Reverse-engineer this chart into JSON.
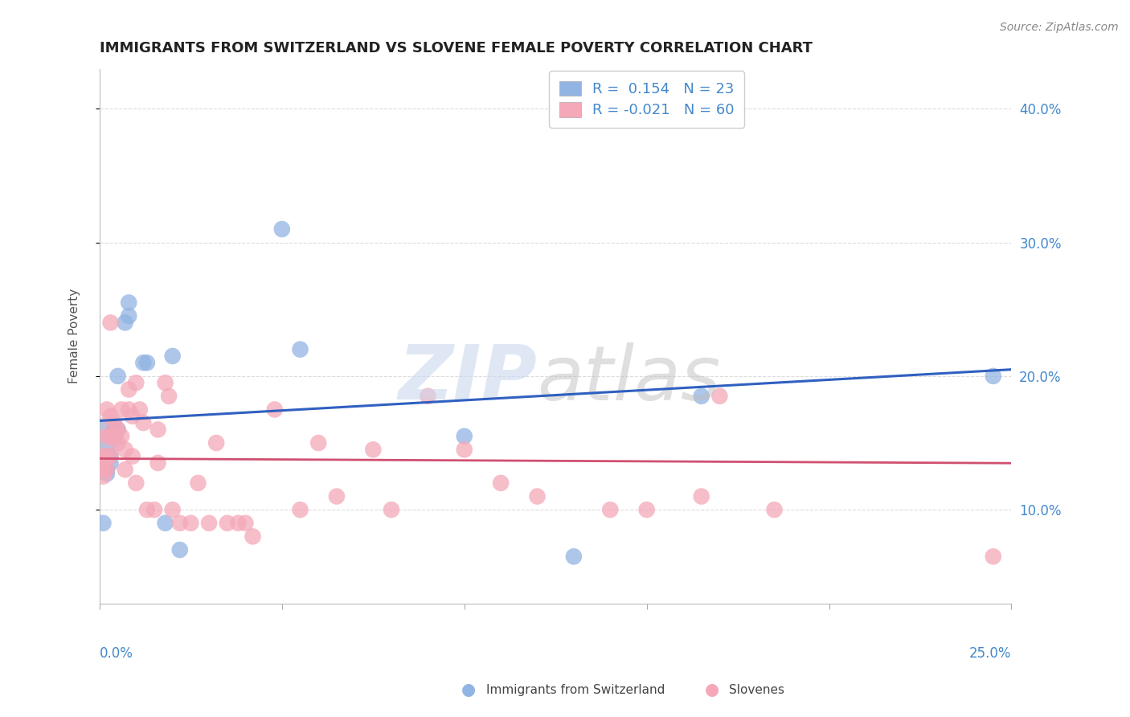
{
  "title": "IMMIGRANTS FROM SWITZERLAND VS SLOVENE FEMALE POVERTY CORRELATION CHART",
  "source": "Source: ZipAtlas.com",
  "ylabel": "Female Poverty",
  "yticks": [
    0.1,
    0.2,
    0.3,
    0.4
  ],
  "ytick_labels": [
    "10.0%",
    "20.0%",
    "30.0%",
    "40.0%"
  ],
  "xlim": [
    0.0,
    0.25
  ],
  "ylim": [
    0.03,
    0.43
  ],
  "blue_color": "#92b4e3",
  "pink_color": "#f4a8b8",
  "blue_line_color": "#3060c0",
  "pink_line_color": "#d05070",
  "blue_scatter_x": [
    0.001,
    0.002,
    0.002,
    0.003,
    0.003,
    0.004,
    0.004,
    0.005,
    0.005,
    0.007,
    0.008,
    0.008,
    0.012,
    0.013,
    0.018,
    0.02,
    0.022,
    0.05,
    0.055,
    0.1,
    0.13,
    0.165,
    0.245
  ],
  "blue_scatter_y": [
    0.09,
    0.127,
    0.13,
    0.14,
    0.135,
    0.155,
    0.16,
    0.2,
    0.16,
    0.24,
    0.255,
    0.245,
    0.21,
    0.21,
    0.09,
    0.215,
    0.07,
    0.31,
    0.22,
    0.155,
    0.065,
    0.185,
    0.2
  ],
  "pink_scatter_x": [
    0.001,
    0.001,
    0.001,
    0.001,
    0.002,
    0.002,
    0.002,
    0.002,
    0.003,
    0.003,
    0.003,
    0.003,
    0.004,
    0.004,
    0.005,
    0.005,
    0.006,
    0.006,
    0.007,
    0.007,
    0.008,
    0.008,
    0.009,
    0.009,
    0.01,
    0.01,
    0.011,
    0.012,
    0.013,
    0.015,
    0.016,
    0.016,
    0.018,
    0.019,
    0.02,
    0.022,
    0.025,
    0.027,
    0.03,
    0.032,
    0.035,
    0.038,
    0.04,
    0.042,
    0.048,
    0.055,
    0.06,
    0.065,
    0.075,
    0.08,
    0.09,
    0.1,
    0.11,
    0.12,
    0.14,
    0.15,
    0.165,
    0.17,
    0.185,
    0.245
  ],
  "pink_scatter_y": [
    0.14,
    0.135,
    0.13,
    0.125,
    0.175,
    0.155,
    0.14,
    0.13,
    0.24,
    0.17,
    0.155,
    0.14,
    0.165,
    0.155,
    0.16,
    0.15,
    0.175,
    0.155,
    0.145,
    0.13,
    0.19,
    0.175,
    0.17,
    0.14,
    0.195,
    0.12,
    0.175,
    0.165,
    0.1,
    0.1,
    0.16,
    0.135,
    0.195,
    0.185,
    0.1,
    0.09,
    0.09,
    0.12,
    0.09,
    0.15,
    0.09,
    0.09,
    0.09,
    0.08,
    0.175,
    0.1,
    0.15,
    0.11,
    0.145,
    0.1,
    0.185,
    0.145,
    0.12,
    0.11,
    0.1,
    0.1,
    0.11,
    0.185,
    0.1,
    0.065
  ],
  "blue_r": 0.154,
  "pink_r": -0.021,
  "grid_color": "#cccccc",
  "background_color": "#ffffff",
  "legend_label1": "R =  0.154   N = 23",
  "legend_label2": "R = -0.021   N = 60",
  "bottom_label1": "Immigrants from Switzerland",
  "bottom_label2": "Slovenes"
}
